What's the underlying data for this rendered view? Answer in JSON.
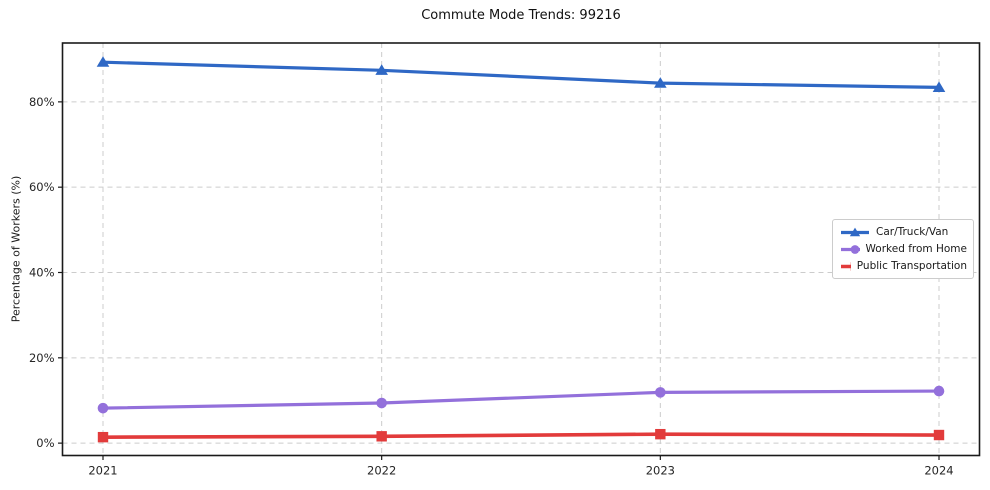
{
  "chart_data": {
    "type": "line",
    "title": "Commute Mode Trends: 99216",
    "xlabel": "",
    "ylabel": "Percentage of Workers (%)",
    "categories": [
      "2021",
      "2022",
      "2023",
      "2024"
    ],
    "series": [
      {
        "name": "Car/Truck/Van",
        "marker": "triangle",
        "color": "#2f68c5",
        "line_width": 3.2,
        "values": [
          89.3,
          87.4,
          84.4,
          83.4
        ]
      },
      {
        "name": "Worked from Home",
        "marker": "circle",
        "color": "#9370db",
        "line_width": 3.2,
        "values": [
          8.2,
          9.4,
          11.9,
          12.2
        ]
      },
      {
        "name": "Public Transportation",
        "marker": "square",
        "color": "#e23b3b",
        "line_width": 3.6,
        "values": [
          1.4,
          1.6,
          2.1,
          1.9
        ]
      }
    ],
    "ylim": [
      -2.9,
      93.8
    ],
    "yticks": [
      0,
      20,
      40,
      60,
      80
    ],
    "ytick_suffix": "%",
    "grid": true,
    "grid_color": "#cccccc",
    "axis_color": "#1a1a1a",
    "tick_label_color": "#262626",
    "legend_position": "center-right"
  }
}
